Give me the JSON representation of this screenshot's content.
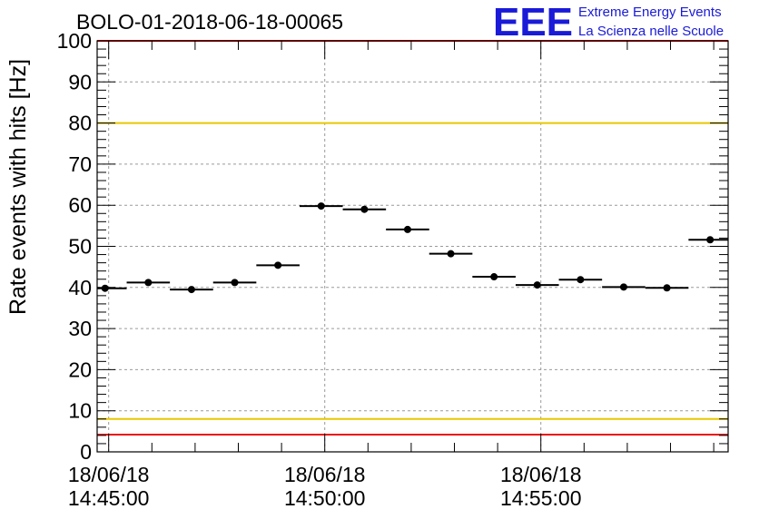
{
  "chart_data": {
    "type": "scatter",
    "title": "BOLO-01-2018-06-18-00065",
    "ylabel": "Rate events with hits [Hz]",
    "xlabel": "",
    "ylim": [
      0,
      100
    ],
    "y_ticks": [
      "0",
      "10",
      "20",
      "30",
      "40",
      "50",
      "60",
      "70",
      "80",
      "90",
      "100"
    ],
    "x_ticks": [
      {
        "date": "18/06/18",
        "time": "14:45:00"
      },
      {
        "date": "18/06/18",
        "time": "14:50:00"
      },
      {
        "date": "18/06/18",
        "time": "14:55:00"
      }
    ],
    "xlim": [
      "14:44:44",
      "14:59:20"
    ],
    "grid": true,
    "points": [
      {
        "x": "14:44:55",
        "y": 39.8,
        "xerr_s": 30
      },
      {
        "x": "14:45:55",
        "y": 41.2,
        "xerr_s": 30
      },
      {
        "x": "14:46:55",
        "y": 39.5,
        "xerr_s": 30
      },
      {
        "x": "14:47:55",
        "y": 41.2,
        "xerr_s": 30
      },
      {
        "x": "14:48:55",
        "y": 45.4,
        "xerr_s": 30
      },
      {
        "x": "14:49:55",
        "y": 59.8,
        "xerr_s": 30
      },
      {
        "x": "14:50:55",
        "y": 59.0,
        "xerr_s": 30
      },
      {
        "x": "14:51:55",
        "y": 54.1,
        "xerr_s": 30
      },
      {
        "x": "14:52:55",
        "y": 48.2,
        "xerr_s": 30
      },
      {
        "x": "14:53:55",
        "y": 42.6,
        "xerr_s": 30
      },
      {
        "x": "14:54:55",
        "y": 40.6,
        "xerr_s": 30
      },
      {
        "x": "14:55:55",
        "y": 41.9,
        "xerr_s": 30
      },
      {
        "x": "14:56:55",
        "y": 40.1,
        "xerr_s": 30
      },
      {
        "x": "14:57:55",
        "y": 39.9,
        "xerr_s": 30
      },
      {
        "x": "14:58:55",
        "y": 51.6,
        "xerr_s": 30
      }
    ],
    "reference_lines": [
      {
        "y": 80,
        "color": "#e8c800"
      },
      {
        "y": 8,
        "color": "#e8c800"
      },
      {
        "y": 100,
        "color": "#e81010"
      },
      {
        "y": 4.2,
        "color": "#e81010"
      }
    ]
  },
  "logo": {
    "mark": "EEE",
    "line1": "Extreme Energy Events",
    "line2": "La Scienza nelle Scuole",
    "color": "#1a1ad8"
  }
}
